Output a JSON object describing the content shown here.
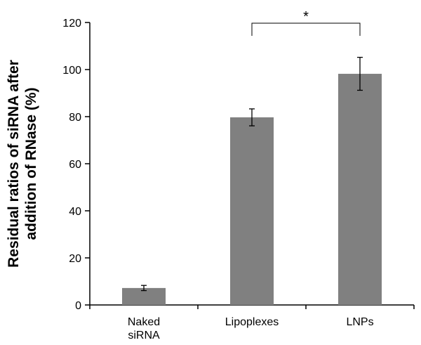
{
  "chart_data": {
    "type": "bar",
    "categories": [
      [
        "Naked",
        "siRNA"
      ],
      [
        "Lipoplexes"
      ],
      [
        "LNPs"
      ]
    ],
    "values": [
      7.2,
      79.7,
      98.2
    ],
    "error": [
      1.1,
      3.6,
      7.0
    ],
    "ylabel": [
      "Residual ratios of siRNA after",
      "addition of RNase (%)"
    ],
    "ylim": [
      0,
      120
    ],
    "yticks": [
      0,
      20,
      40,
      60,
      80,
      100,
      120
    ],
    "significance": [
      {
        "from": 1,
        "to": 2,
        "label": "*"
      }
    ],
    "bar_color": "#808080"
  }
}
